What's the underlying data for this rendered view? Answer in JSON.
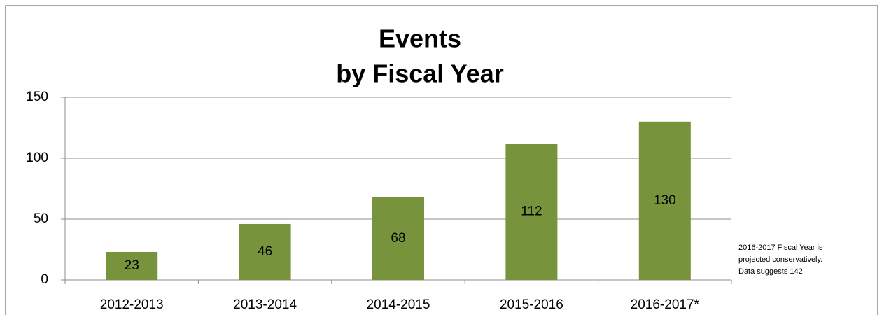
{
  "chart_data": {
    "type": "bar",
    "title": [
      "Events",
      "by Fiscal Year"
    ],
    "categories": [
      "2012-2013",
      "2013-2014",
      "2014-2015",
      "2015-2016",
      "2016-2017*"
    ],
    "values": [
      23,
      46,
      68,
      112,
      130
    ],
    "color": "#77933c",
    "ylim": [
      0,
      150
    ],
    "yticks": [
      0,
      50,
      100,
      150
    ],
    "grid": true,
    "annotation": [
      "2016-2017 Fiscal Year is",
      "projected conservatively.",
      "Data suggests 142"
    ]
  }
}
